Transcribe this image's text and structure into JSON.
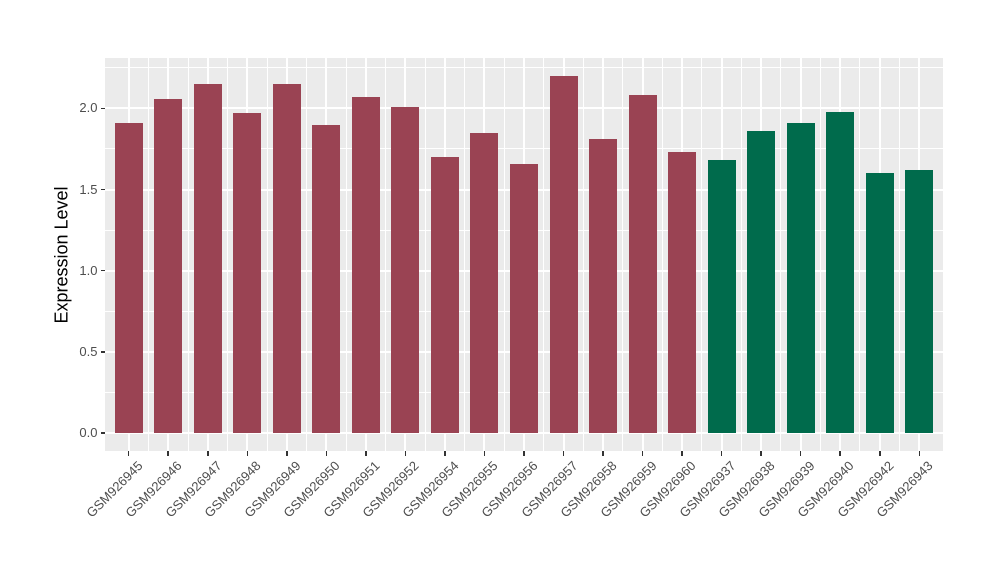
{
  "chart_data": {
    "type": "bar",
    "title": "",
    "xlabel": "",
    "ylabel": "Expression Level",
    "categories": [
      "GSM926945",
      "GSM926946",
      "GSM926947",
      "GSM926948",
      "GSM926949",
      "GSM926950",
      "GSM926951",
      "GSM926952",
      "GSM926954",
      "GSM926955",
      "GSM926956",
      "GSM926957",
      "GSM926958",
      "GSM926959",
      "GSM926960",
      "GSM926937",
      "GSM926938",
      "GSM926939",
      "GSM926940",
      "GSM926942",
      "GSM926943"
    ],
    "values": [
      1.91,
      2.06,
      2.15,
      1.97,
      2.15,
      1.9,
      2.07,
      2.01,
      1.7,
      1.85,
      1.66,
      2.2,
      1.81,
      2.08,
      1.73,
      1.68,
      1.86,
      1.91,
      1.98,
      1.6,
      1.62
    ],
    "bar_groups": [
      "group1",
      "group1",
      "group1",
      "group1",
      "group1",
      "group1",
      "group1",
      "group1",
      "group1",
      "group1",
      "group1",
      "group1",
      "group1",
      "group1",
      "group1",
      "group2",
      "group2",
      "group2",
      "group2",
      "group2",
      "group2"
    ],
    "group_colors": {
      "group1": "#9A4353",
      "group2": "#006B4C"
    },
    "y_tick_labels": [
      "0.0",
      "0.5",
      "1.0",
      "1.5",
      "2.0"
    ],
    "y_tick_values": [
      0,
      0.5,
      1,
      1.5,
      2
    ],
    "y_minor_values": [
      0.25,
      0.75,
      1.25,
      1.75,
      2.25
    ],
    "ylim": [
      -0.11,
      2.31
    ],
    "bar_baseline": 0,
    "grid": "white major and minor gridlines on grey panel",
    "legend_position": "none"
  },
  "theme": {
    "figure_background": "#FFFFFF",
    "panel_background": "#EBEBEB",
    "grid_color": "#FFFFFF",
    "axis_text_color": "#4D4D4D",
    "axis_title_color": "#000000",
    "tick_mark_color": "#333333"
  }
}
